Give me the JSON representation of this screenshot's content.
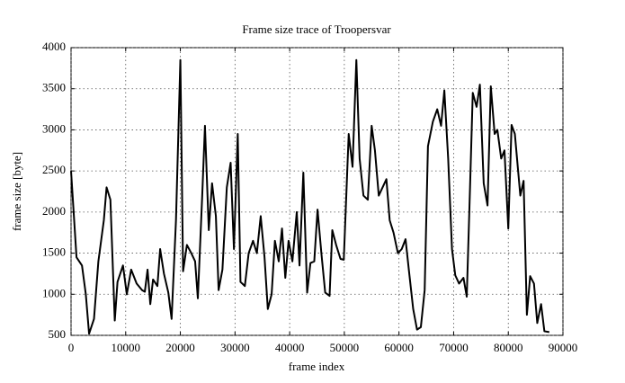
{
  "chart_data": {
    "type": "line",
    "title": "Frame size trace of Troopersvar",
    "x_label": "frame index",
    "y_label": "frame size [byte]",
    "x": [
      0,
      1000,
      2000,
      2700,
      3300,
      4200,
      5000,
      6000,
      6500,
      7200,
      8000,
      8500,
      9500,
      10200,
      11000,
      12000,
      13000,
      13500,
      14000,
      14500,
      15000,
      15800,
      16300,
      17000,
      17800,
      18400,
      19200,
      20000,
      20500,
      21200,
      22000,
      22700,
      23200,
      24000,
      24500,
      25200,
      25800,
      26500,
      27000,
      27700,
      28500,
      29200,
      29800,
      30500,
      31000,
      31800,
      32500,
      33300,
      34000,
      34700,
      35400,
      36000,
      36700,
      37300,
      38000,
      38600,
      39200,
      39800,
      40500,
      41300,
      41800,
      42500,
      43200,
      43800,
      44500,
      45100,
      45800,
      46500,
      47300,
      47800,
      48500,
      49300,
      49900,
      50800,
      51500,
      52200,
      52800,
      53500,
      54300,
      55000,
      55600,
      56300,
      57000,
      57700,
      58300,
      59000,
      59800,
      60500,
      61200,
      61800,
      62600,
      63300,
      64000,
      64700,
      65300,
      66200,
      67000,
      67700,
      68300,
      69000,
      69700,
      70300,
      71000,
      71800,
      72400,
      73000,
      73500,
      74200,
      74800,
      75500,
      76200,
      76800,
      77500,
      78000,
      78700,
      79300,
      80000,
      80600,
      81200,
      81800,
      82200,
      82800,
      83400,
      84000,
      84700,
      85300,
      86000,
      86600,
      87500
    ],
    "values": [
      2500,
      1450,
      1350,
      1000,
      520,
      700,
      1400,
      1900,
      2300,
      2150,
      680,
      1150,
      1350,
      1000,
      1300,
      1130,
      1050,
      1030,
      1300,
      880,
      1180,
      1100,
      1550,
      1250,
      1020,
      700,
      1900,
      3850,
      1280,
      1600,
      1500,
      1400,
      950,
      2200,
      3050,
      1780,
      2350,
      1950,
      1050,
      1300,
      2300,
      2600,
      1550,
      2950,
      1150,
      1100,
      1500,
      1650,
      1500,
      1950,
      1450,
      820,
      1000,
      1650,
      1400,
      1800,
      1200,
      1650,
      1400,
      2000,
      1350,
      2480,
      1020,
      1380,
      1400,
      2030,
      1500,
      1020,
      980,
      1780,
      1600,
      1430,
      1420,
      2950,
      2550,
      3850,
      2650,
      2200,
      2150,
      3050,
      2750,
      2200,
      2300,
      2400,
      1900,
      1750,
      1500,
      1550,
      1670,
      1300,
      820,
      570,
      600,
      1050,
      2800,
      3100,
      3250,
      3050,
      3480,
      2650,
      1550,
      1230,
      1130,
      1200,
      970,
      2300,
      3450,
      3280,
      3550,
      2350,
      2080,
      3530,
      2950,
      3000,
      2650,
      2750,
      1800,
      3060,
      2950,
      2500,
      2200,
      2380,
      750,
      1220,
      1130,
      650,
      880,
      550,
      540
    ],
    "color": "#000000",
    "xlim": [
      0,
      90000
    ],
    "xticks": [
      0,
      10000,
      20000,
      30000,
      40000,
      50000,
      60000,
      70000,
      80000,
      90000
    ],
    "ylim": [
      500,
      4000
    ],
    "yticks": [
      500,
      1000,
      1500,
      2000,
      2500,
      3000,
      3500,
      4000
    ],
    "grid": true
  }
}
